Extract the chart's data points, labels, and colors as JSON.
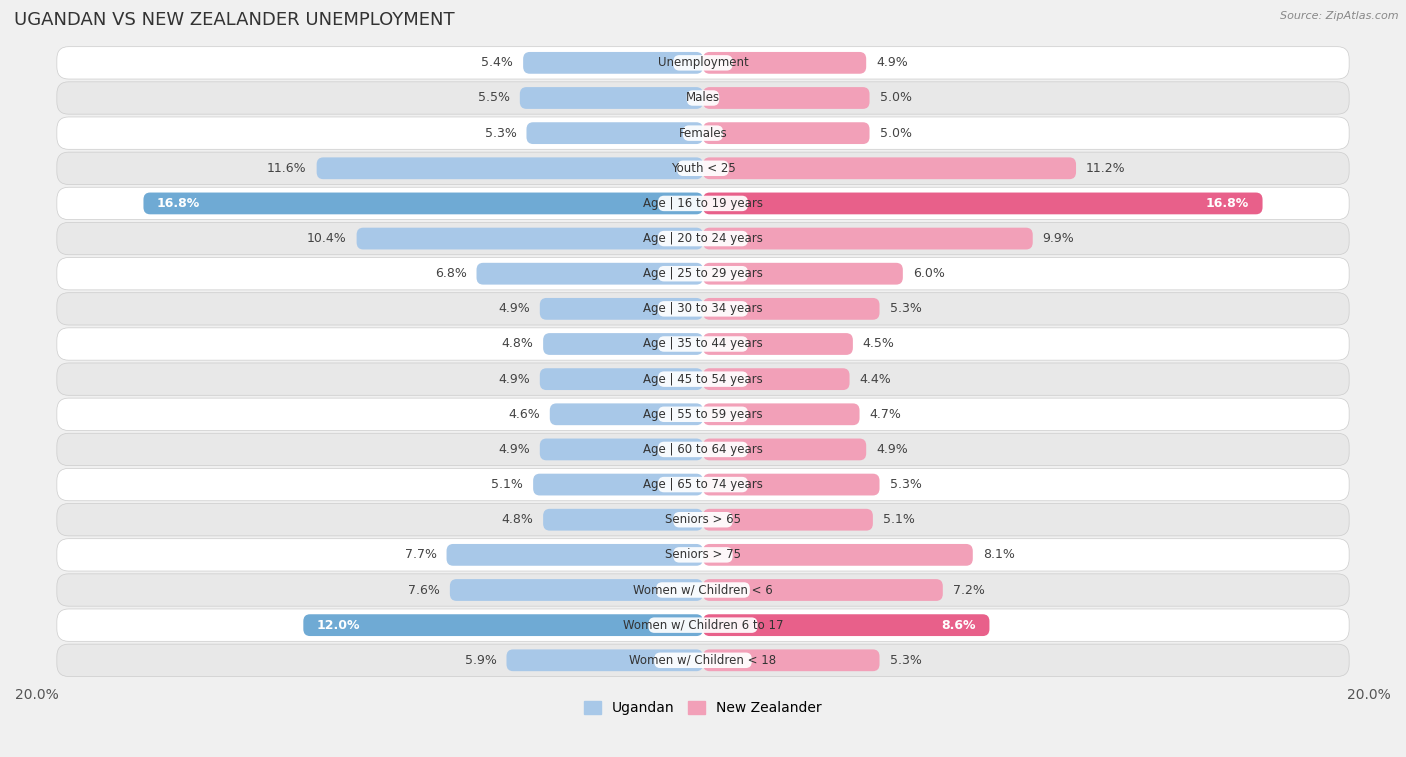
{
  "title": "UGANDAN VS NEW ZEALANDER UNEMPLOYMENT",
  "source_text": "Source: ZipAtlas.com",
  "categories": [
    "Unemployment",
    "Males",
    "Females",
    "Youth < 25",
    "Age | 16 to 19 years",
    "Age | 20 to 24 years",
    "Age | 25 to 29 years",
    "Age | 30 to 34 years",
    "Age | 35 to 44 years",
    "Age | 45 to 54 years",
    "Age | 55 to 59 years",
    "Age | 60 to 64 years",
    "Age | 65 to 74 years",
    "Seniors > 65",
    "Seniors > 75",
    "Women w/ Children < 6",
    "Women w/ Children 6 to 17",
    "Women w/ Children < 18"
  ],
  "ugandan": [
    5.4,
    5.5,
    5.3,
    11.6,
    16.8,
    10.4,
    6.8,
    4.9,
    4.8,
    4.9,
    4.6,
    4.9,
    5.1,
    4.8,
    7.7,
    7.6,
    12.0,
    5.9
  ],
  "new_zealander": [
    4.9,
    5.0,
    5.0,
    11.2,
    16.8,
    9.9,
    6.0,
    5.3,
    4.5,
    4.4,
    4.7,
    4.9,
    5.3,
    5.1,
    8.1,
    7.2,
    8.6,
    5.3
  ],
  "ugandan_color_normal": "#a8c8e8",
  "ugandan_color_highlight": "#6faad4",
  "new_zealander_color_normal": "#f2a0b8",
  "new_zealander_color_highlight": "#e8608a",
  "highlight_rows": [
    4,
    16
  ],
  "xlim": 20.0,
  "bar_height": 0.62,
  "background_color": "#f0f0f0",
  "row_bg_even": "#ffffff",
  "row_bg_odd": "#e8e8e8",
  "legend_ugandan": "Ugandan",
  "legend_new_zealander": "New Zealander",
  "title_fontsize": 13,
  "bar_label_fontsize": 9,
  "cat_label_fontsize": 8.5,
  "x_tick_fontsize": 10
}
